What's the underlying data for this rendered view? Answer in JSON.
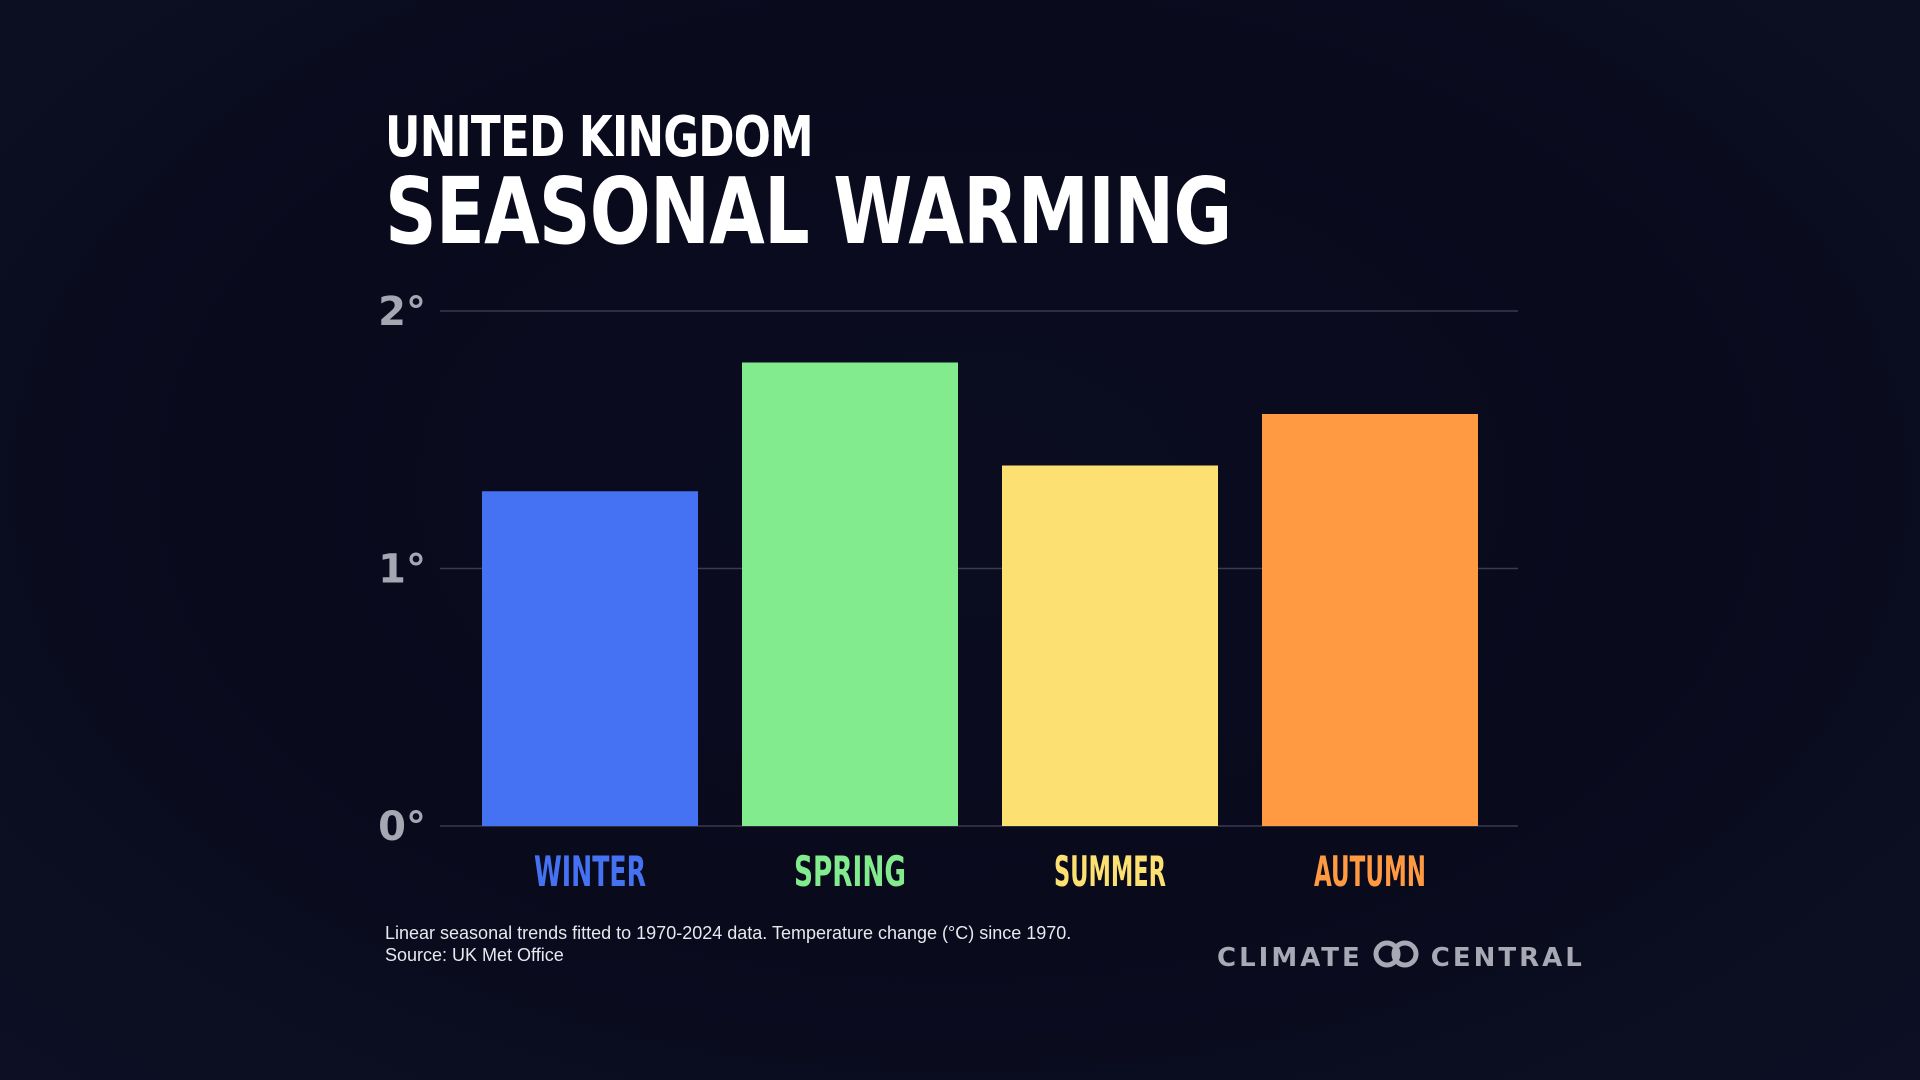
{
  "header": {
    "title_top": "UNITED KINGDOM",
    "title_main": "SEASONAL WARMING"
  },
  "chart_data": {
    "type": "bar",
    "categories": [
      "WINTER",
      "SPRING",
      "SUMMER",
      "AUTUMN"
    ],
    "values": [
      1.3,
      1.8,
      1.4,
      1.6
    ],
    "colors": [
      "#4572f2",
      "#82eb8e",
      "#fce072",
      "#ff9a42"
    ],
    "ylim": [
      0,
      2
    ],
    "yticks": [
      {
        "value": 0,
        "label": "0°"
      },
      {
        "value": 1,
        "label": "1°"
      },
      {
        "value": 2,
        "label": "2°"
      }
    ],
    "grid": true,
    "title": "SEASONAL WARMING",
    "xlabel": "",
    "ylabel": ""
  },
  "footnote": {
    "line1": "Linear seasonal trends fitted to 1970-2024 data. Temperature change (°C) since 1970.",
    "line2": "Source: UK Met Office"
  },
  "logo": {
    "left_text": "CLIMATE",
    "right_text": "CENTRAL",
    "icon": "climate-central-rings-icon"
  }
}
